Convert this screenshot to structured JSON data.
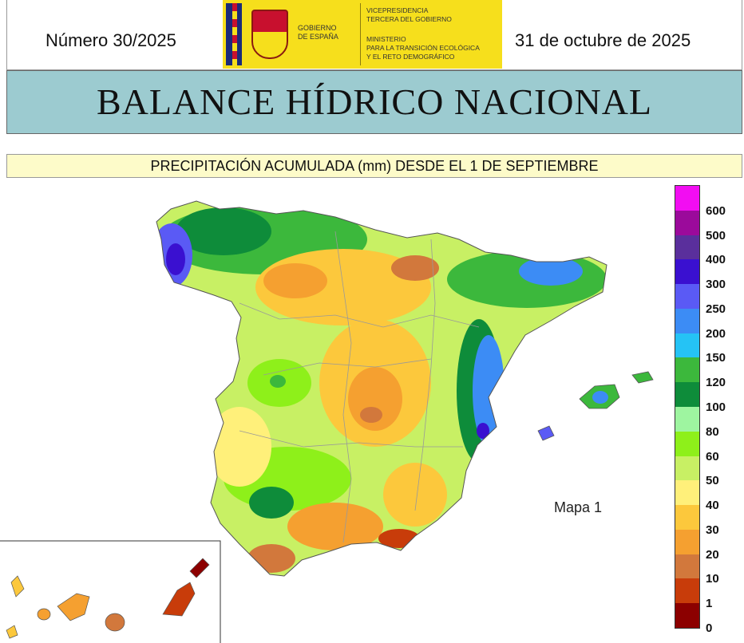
{
  "header": {
    "issue": "Número 30/2025",
    "date": "31 de octubre de 2025",
    "logo": {
      "gobierno": [
        "GOBIERNO",
        "DE ESPAÑA"
      ],
      "vicepresidencia": [
        "VICEPRESIDENCIA",
        "TERCERA DEL GOBIERNO"
      ],
      "ministerio": [
        "MINISTERIO",
        "PARA LA TRANSICIÓN ECOLÓGICA",
        "Y EL RETO DEMOGRÁFICO"
      ]
    }
  },
  "title": "BALANCE HÍDRICO NACIONAL",
  "subtitle": "PRECIPITACIÓN ACUMULADA (mm) DESDE EL 1 DE SEPTIEMBRE",
  "map_label": "Mapa 1",
  "legend": {
    "classes": [
      {
        "color": "#f20df2"
      },
      {
        "color": "#9b0a9b",
        "label": "600"
      },
      {
        "color": "#5a2f9c",
        "label": "500"
      },
      {
        "color": "#3a10d0",
        "label": "400"
      },
      {
        "color": "#5a5af5",
        "label": "300"
      },
      {
        "color": "#3c8cf5",
        "label": "250"
      },
      {
        "color": "#25c3f5",
        "label": "200"
      },
      {
        "color": "#3cb83c",
        "label": "150"
      },
      {
        "color": "#0e8c3a",
        "label": "120"
      },
      {
        "color": "#9ef5a0",
        "label": "100"
      },
      {
        "color": "#8ef01a",
        "label": "80"
      },
      {
        "color": "#c8f064",
        "label": "60"
      },
      {
        "color": "#fff07a",
        "label": "50"
      },
      {
        "color": "#fcc83c",
        "label": "40"
      },
      {
        "color": "#f5a030",
        "label": "30"
      },
      {
        "color": "#d2783c",
        "label": "20"
      },
      {
        "color": "#c83c0a",
        "label": "10"
      },
      {
        "color": "#8c0000",
        "label": "1"
      }
    ],
    "bottom_label": "0"
  },
  "colors": {
    "title_bg": "#9ccbd0",
    "subtitle_bg": "#fdfbc9",
    "logo_bg": "#f6df1c"
  }
}
